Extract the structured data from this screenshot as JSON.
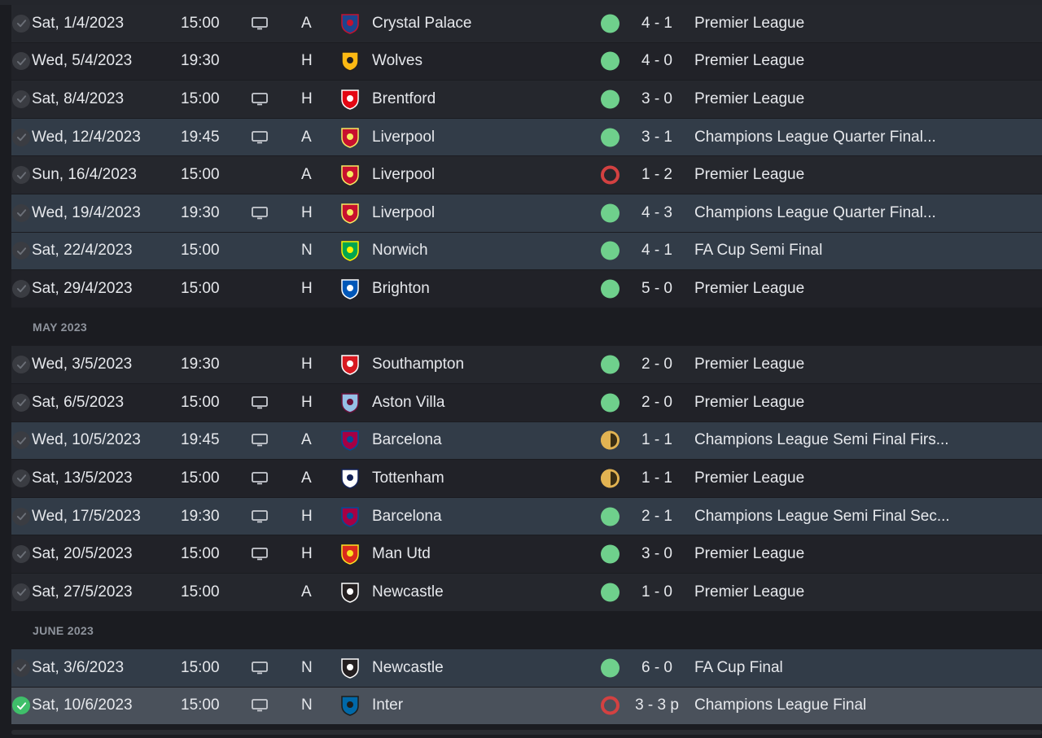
{
  "months": [
    {
      "label": "",
      "fixtures": [
        {
          "date": "Sat, 1/4/2023",
          "time": "15:00",
          "tv": true,
          "venue": "A",
          "team": "Crystal Palace",
          "badge": "crystal-palace",
          "result": "win",
          "score": "4 - 1",
          "competition": "Premier League",
          "highlight": false
        },
        {
          "date": "Wed, 5/4/2023",
          "time": "19:30",
          "tv": false,
          "venue": "H",
          "team": "Wolves",
          "badge": "wolves",
          "result": "win",
          "score": "4 - 0",
          "competition": "Premier League",
          "highlight": false
        },
        {
          "date": "Sat, 8/4/2023",
          "time": "15:00",
          "tv": true,
          "venue": "H",
          "team": "Brentford",
          "badge": "brentford",
          "result": "win",
          "score": "3 - 0",
          "competition": "Premier League",
          "highlight": false
        },
        {
          "date": "Wed, 12/4/2023",
          "time": "19:45",
          "tv": true,
          "venue": "A",
          "team": "Liverpool",
          "badge": "liverpool",
          "result": "win",
          "score": "3 - 1",
          "competition": "Champions League Quarter Final...",
          "highlight": true
        },
        {
          "date": "Sun, 16/4/2023",
          "time": "15:00",
          "tv": false,
          "venue": "A",
          "team": "Liverpool",
          "badge": "liverpool",
          "result": "loss",
          "score": "1 - 2",
          "competition": "Premier League",
          "highlight": false
        },
        {
          "date": "Wed, 19/4/2023",
          "time": "19:30",
          "tv": true,
          "venue": "H",
          "team": "Liverpool",
          "badge": "liverpool",
          "result": "win",
          "score": "4 - 3",
          "competition": "Champions League Quarter Final...",
          "highlight": true
        },
        {
          "date": "Sat, 22/4/2023",
          "time": "15:00",
          "tv": false,
          "venue": "N",
          "team": "Norwich",
          "badge": "norwich",
          "result": "win",
          "score": "4 - 1",
          "competition": "FA Cup Semi Final",
          "highlight": true
        },
        {
          "date": "Sat, 29/4/2023",
          "time": "15:00",
          "tv": false,
          "venue": "H",
          "team": "Brighton",
          "badge": "brighton",
          "result": "win",
          "score": "5 - 0",
          "competition": "Premier League",
          "highlight": false
        }
      ]
    },
    {
      "label": "MAY 2023",
      "fixtures": [
        {
          "date": "Wed, 3/5/2023",
          "time": "19:30",
          "tv": false,
          "venue": "H",
          "team": "Southampton",
          "badge": "southampton",
          "result": "win",
          "score": "2 - 0",
          "competition": "Premier League",
          "highlight": false
        },
        {
          "date": "Sat, 6/5/2023",
          "time": "15:00",
          "tv": true,
          "venue": "H",
          "team": "Aston Villa",
          "badge": "aston-villa",
          "result": "win",
          "score": "2 - 0",
          "competition": "Premier League",
          "highlight": false
        },
        {
          "date": "Wed, 10/5/2023",
          "time": "19:45",
          "tv": true,
          "venue": "A",
          "team": "Barcelona",
          "badge": "barcelona",
          "result": "draw",
          "score": "1 - 1",
          "competition": "Champions League Semi Final Firs...",
          "highlight": true
        },
        {
          "date": "Sat, 13/5/2023",
          "time": "15:00",
          "tv": true,
          "venue": "A",
          "team": "Tottenham",
          "badge": "tottenham",
          "result": "draw",
          "score": "1 - 1",
          "competition": "Premier League",
          "highlight": false
        },
        {
          "date": "Wed, 17/5/2023",
          "time": "19:30",
          "tv": true,
          "venue": "H",
          "team": "Barcelona",
          "badge": "barcelona",
          "result": "win",
          "score": "2 - 1",
          "competition": "Champions League Semi Final Sec...",
          "highlight": true
        },
        {
          "date": "Sat, 20/5/2023",
          "time": "15:00",
          "tv": true,
          "venue": "H",
          "team": "Man Utd",
          "badge": "man-utd",
          "result": "win",
          "score": "3 - 0",
          "competition": "Premier League",
          "highlight": false
        },
        {
          "date": "Sat, 27/5/2023",
          "time": "15:00",
          "tv": false,
          "venue": "A",
          "team": "Newcastle",
          "badge": "newcastle",
          "result": "win",
          "score": "1 - 0",
          "competition": "Premier League",
          "highlight": false
        }
      ]
    },
    {
      "label": "JUNE 2023",
      "fixtures": [
        {
          "date": "Sat, 3/6/2023",
          "time": "15:00",
          "tv": true,
          "venue": "N",
          "team": "Newcastle",
          "badge": "newcastle",
          "result": "win",
          "score": "6 - 0",
          "competition": "FA Cup Final",
          "highlight": true
        },
        {
          "date": "Sat, 10/6/2023",
          "time": "15:00",
          "tv": true,
          "venue": "N",
          "team": "Inter",
          "badge": "inter",
          "result": "loss",
          "score": "3 - 3 p",
          "competition": "Champions League Final",
          "highlight": true,
          "last": true
        }
      ]
    }
  ],
  "badge_colors": {
    "crystal-palace": [
      "#1b458f",
      "#c4122e"
    ],
    "wolves": [
      "#fdb913",
      "#231f20"
    ],
    "brentford": [
      "#e30613",
      "#ffffff"
    ],
    "liverpool": [
      "#c8102e",
      "#f6eb61"
    ],
    "norwich": [
      "#00a650",
      "#fff200"
    ],
    "brighton": [
      "#0057b8",
      "#ffffff"
    ],
    "southampton": [
      "#d71920",
      "#ffffff"
    ],
    "aston-villa": [
      "#95bfe5",
      "#670e36"
    ],
    "barcelona": [
      "#a50044",
      "#004d98"
    ],
    "tottenham": [
      "#ffffff",
      "#132257"
    ],
    "man-utd": [
      "#da291c",
      "#fbe122"
    ],
    "newcastle": [
      "#241f20",
      "#ffffff"
    ],
    "inter": [
      "#0068a8",
      "#1d1d1b"
    ]
  }
}
